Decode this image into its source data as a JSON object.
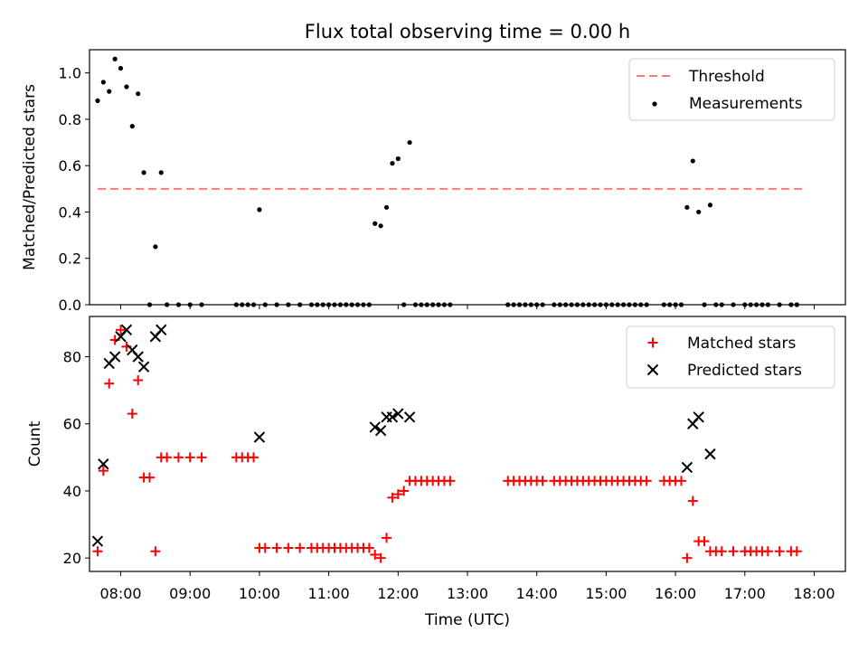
{
  "figure": {
    "title": "Flux total observing time = 0.00 h",
    "xlabel": "Time (UTC)"
  },
  "x_ticks": [
    "08:00",
    "09:00",
    "10:00",
    "11:00",
    "12:00",
    "13:00",
    "14:00",
    "15:00",
    "16:00",
    "17:00",
    "18:00"
  ],
  "top_ticks": [
    "0.0",
    "0.2",
    "0.4",
    "0.6",
    "0.8",
    "1.0"
  ],
  "bottom_ticks": [
    "20",
    "40",
    "60",
    "80"
  ],
  "legend_top": {
    "threshold": "Threshold",
    "measurements": "Measurements"
  },
  "legend_bottom": {
    "matched": "Matched stars",
    "predicted": "Predicted stars"
  },
  "colors": {
    "threshold": "#ff7777",
    "measurements": "#000000",
    "matched": "#ff0000",
    "predicted": "#000000"
  },
  "chart_data": [
    {
      "type": "scatter",
      "ylabel": "Matched/Predicted stars",
      "xlim": [
        "07:33",
        "18:27"
      ],
      "ylim": [
        0,
        1.1
      ],
      "x_unit": "time of day (UTC)",
      "threshold": {
        "y": 0.5,
        "x": [
          "07:40",
          "17:52"
        ]
      },
      "series": [
        {
          "name": "Measurements",
          "points": [
            [
              "07:40",
              0.88
            ],
            [
              "07:45",
              0.96
            ],
            [
              "07:50",
              0.92
            ],
            [
              "07:55",
              1.06
            ],
            [
              "08:00",
              1.02
            ],
            [
              "08:05",
              0.94
            ],
            [
              "08:10",
              0.77
            ],
            [
              "08:15",
              0.91
            ],
            [
              "08:20",
              0.57
            ],
            [
              "08:25",
              0
            ],
            [
              "08:30",
              0.25
            ],
            [
              "08:35",
              0.57
            ],
            [
              "08:40",
              0
            ],
            [
              "08:50",
              0
            ],
            [
              "09:00",
              0
            ],
            [
              "09:10",
              0
            ],
            [
              "09:40",
              0
            ],
            [
              "09:45",
              0
            ],
            [
              "09:50",
              0
            ],
            [
              "09:55",
              0
            ],
            [
              "10:00",
              0.41
            ],
            [
              "10:05",
              0
            ],
            [
              "10:15",
              0
            ],
            [
              "10:25",
              0
            ],
            [
              "10:35",
              0
            ],
            [
              "10:45",
              0
            ],
            [
              "10:50",
              0
            ],
            [
              "10:55",
              0
            ],
            [
              "11:00",
              0
            ],
            [
              "11:05",
              0
            ],
            [
              "11:10",
              0
            ],
            [
              "11:15",
              0
            ],
            [
              "11:20",
              0
            ],
            [
              "11:25",
              0
            ],
            [
              "11:30",
              0
            ],
            [
              "11:35",
              0
            ],
            [
              "11:40",
              0.35
            ],
            [
              "11:45",
              0.34
            ],
            [
              "11:50",
              0.42
            ],
            [
              "11:55",
              0.61
            ],
            [
              "12:00",
              0.63
            ],
            [
              "12:05",
              0
            ],
            [
              "12:10",
              0.7
            ],
            [
              "12:15",
              0
            ],
            [
              "12:20",
              0
            ],
            [
              "12:25",
              0
            ],
            [
              "12:30",
              0
            ],
            [
              "12:35",
              0
            ],
            [
              "12:40",
              0
            ],
            [
              "12:45",
              0
            ],
            [
              "13:35",
              0
            ],
            [
              "13:40",
              0
            ],
            [
              "13:45",
              0
            ],
            [
              "13:50",
              0
            ],
            [
              "13:55",
              0
            ],
            [
              "14:00",
              0
            ],
            [
              "14:05",
              0
            ],
            [
              "14:15",
              0
            ],
            [
              "14:20",
              0
            ],
            [
              "14:25",
              0
            ],
            [
              "14:30",
              0
            ],
            [
              "14:35",
              0
            ],
            [
              "14:40",
              0
            ],
            [
              "14:45",
              0
            ],
            [
              "14:50",
              0
            ],
            [
              "14:55",
              0
            ],
            [
              "15:00",
              0
            ],
            [
              "15:05",
              0
            ],
            [
              "15:10",
              0
            ],
            [
              "15:15",
              0
            ],
            [
              "15:20",
              0
            ],
            [
              "15:25",
              0
            ],
            [
              "15:30",
              0
            ],
            [
              "15:35",
              0
            ],
            [
              "15:50",
              0
            ],
            [
              "15:55",
              0
            ],
            [
              "16:00",
              0
            ],
            [
              "16:05",
              0
            ],
            [
              "16:10",
              0.42
            ],
            [
              "16:15",
              0.62
            ],
            [
              "16:20",
              0.4
            ],
            [
              "16:25",
              0
            ],
            [
              "16:30",
              0.43
            ],
            [
              "16:35",
              0
            ],
            [
              "16:40",
              0
            ],
            [
              "16:50",
              0
            ],
            [
              "17:00",
              0
            ],
            [
              "17:05",
              0
            ],
            [
              "17:10",
              0
            ],
            [
              "17:15",
              0
            ],
            [
              "17:20",
              0
            ],
            [
              "17:30",
              0
            ],
            [
              "17:40",
              0
            ],
            [
              "17:45",
              0
            ]
          ]
        }
      ]
    },
    {
      "type": "scatter",
      "ylabel": "Count",
      "xlim": [
        "07:33",
        "18:27"
      ],
      "ylim": [
        16,
        92
      ],
      "x_unit": "time of day (UTC)",
      "series": [
        {
          "name": "Matched stars",
          "points": [
            [
              "07:40",
              22
            ],
            [
              "07:45",
              46
            ],
            [
              "07:50",
              72
            ],
            [
              "07:55",
              85
            ],
            [
              "08:00",
              88
            ],
            [
              "08:05",
              83
            ],
            [
              "08:10",
              63
            ],
            [
              "08:15",
              73
            ],
            [
              "08:20",
              44
            ],
            [
              "08:25",
              44
            ],
            [
              "08:30",
              22
            ],
            [
              "08:35",
              50
            ],
            [
              "08:40",
              50
            ],
            [
              "08:50",
              50
            ],
            [
              "09:00",
              50
            ],
            [
              "09:10",
              50
            ],
            [
              "09:40",
              50
            ],
            [
              "09:45",
              50
            ],
            [
              "09:50",
              50
            ],
            [
              "09:55",
              50
            ],
            [
              "10:00",
              23
            ],
            [
              "10:05",
              23
            ],
            [
              "10:15",
              23
            ],
            [
              "10:25",
              23
            ],
            [
              "10:35",
              23
            ],
            [
              "10:45",
              23
            ],
            [
              "10:50",
              23
            ],
            [
              "10:55",
              23
            ],
            [
              "11:00",
              23
            ],
            [
              "11:05",
              23
            ],
            [
              "11:10",
              23
            ],
            [
              "11:15",
              23
            ],
            [
              "11:20",
              23
            ],
            [
              "11:25",
              23
            ],
            [
              "11:30",
              23
            ],
            [
              "11:35",
              23
            ],
            [
              "11:40",
              21
            ],
            [
              "11:45",
              20
            ],
            [
              "11:50",
              26
            ],
            [
              "11:55",
              38
            ],
            [
              "12:00",
              39
            ],
            [
              "12:05",
              40
            ],
            [
              "12:10",
              43
            ],
            [
              "12:15",
              43
            ],
            [
              "12:20",
              43
            ],
            [
              "12:25",
              43
            ],
            [
              "12:30",
              43
            ],
            [
              "12:35",
              43
            ],
            [
              "12:40",
              43
            ],
            [
              "12:45",
              43
            ],
            [
              "13:35",
              43
            ],
            [
              "13:40",
              43
            ],
            [
              "13:45",
              43
            ],
            [
              "13:50",
              43
            ],
            [
              "13:55",
              43
            ],
            [
              "14:00",
              43
            ],
            [
              "14:05",
              43
            ],
            [
              "14:15",
              43
            ],
            [
              "14:20",
              43
            ],
            [
              "14:25",
              43
            ],
            [
              "14:30",
              43
            ],
            [
              "14:35",
              43
            ],
            [
              "14:40",
              43
            ],
            [
              "14:45",
              43
            ],
            [
              "14:50",
              43
            ],
            [
              "14:55",
              43
            ],
            [
              "15:00",
              43
            ],
            [
              "15:05",
              43
            ],
            [
              "15:10",
              43
            ],
            [
              "15:15",
              43
            ],
            [
              "15:20",
              43
            ],
            [
              "15:25",
              43
            ],
            [
              "15:30",
              43
            ],
            [
              "15:35",
              43
            ],
            [
              "15:50",
              43
            ],
            [
              "15:55",
              43
            ],
            [
              "16:00",
              43
            ],
            [
              "16:05",
              43
            ],
            [
              "16:10",
              20
            ],
            [
              "16:15",
              37
            ],
            [
              "16:20",
              25
            ],
            [
              "16:25",
              25
            ],
            [
              "16:30",
              22
            ],
            [
              "16:35",
              22
            ],
            [
              "16:40",
              22
            ],
            [
              "16:50",
              22
            ],
            [
              "17:00",
              22
            ],
            [
              "17:05",
              22
            ],
            [
              "17:10",
              22
            ],
            [
              "17:15",
              22
            ],
            [
              "17:20",
              22
            ],
            [
              "17:30",
              22
            ],
            [
              "17:40",
              22
            ],
            [
              "17:45",
              22
            ]
          ]
        },
        {
          "name": "Predicted stars",
          "points": [
            [
              "07:40",
              25
            ],
            [
              "07:45",
              48
            ],
            [
              "07:50",
              78
            ],
            [
              "07:55",
              80
            ],
            [
              "08:00",
              86
            ],
            [
              "08:05",
              88
            ],
            [
              "08:10",
              82
            ],
            [
              "08:15",
              80
            ],
            [
              "08:20",
              77
            ],
            [
              "08:30",
              86
            ],
            [
              "08:35",
              88
            ],
            [
              "10:00",
              56
            ],
            [
              "11:40",
              59
            ],
            [
              "11:45",
              58
            ],
            [
              "11:50",
              62
            ],
            [
              "11:55",
              62
            ],
            [
              "12:00",
              63
            ],
            [
              "12:10",
              62
            ],
            [
              "16:10",
              47
            ],
            [
              "16:15",
              60
            ],
            [
              "16:20",
              62
            ],
            [
              "16:30",
              51
            ]
          ]
        }
      ]
    }
  ]
}
